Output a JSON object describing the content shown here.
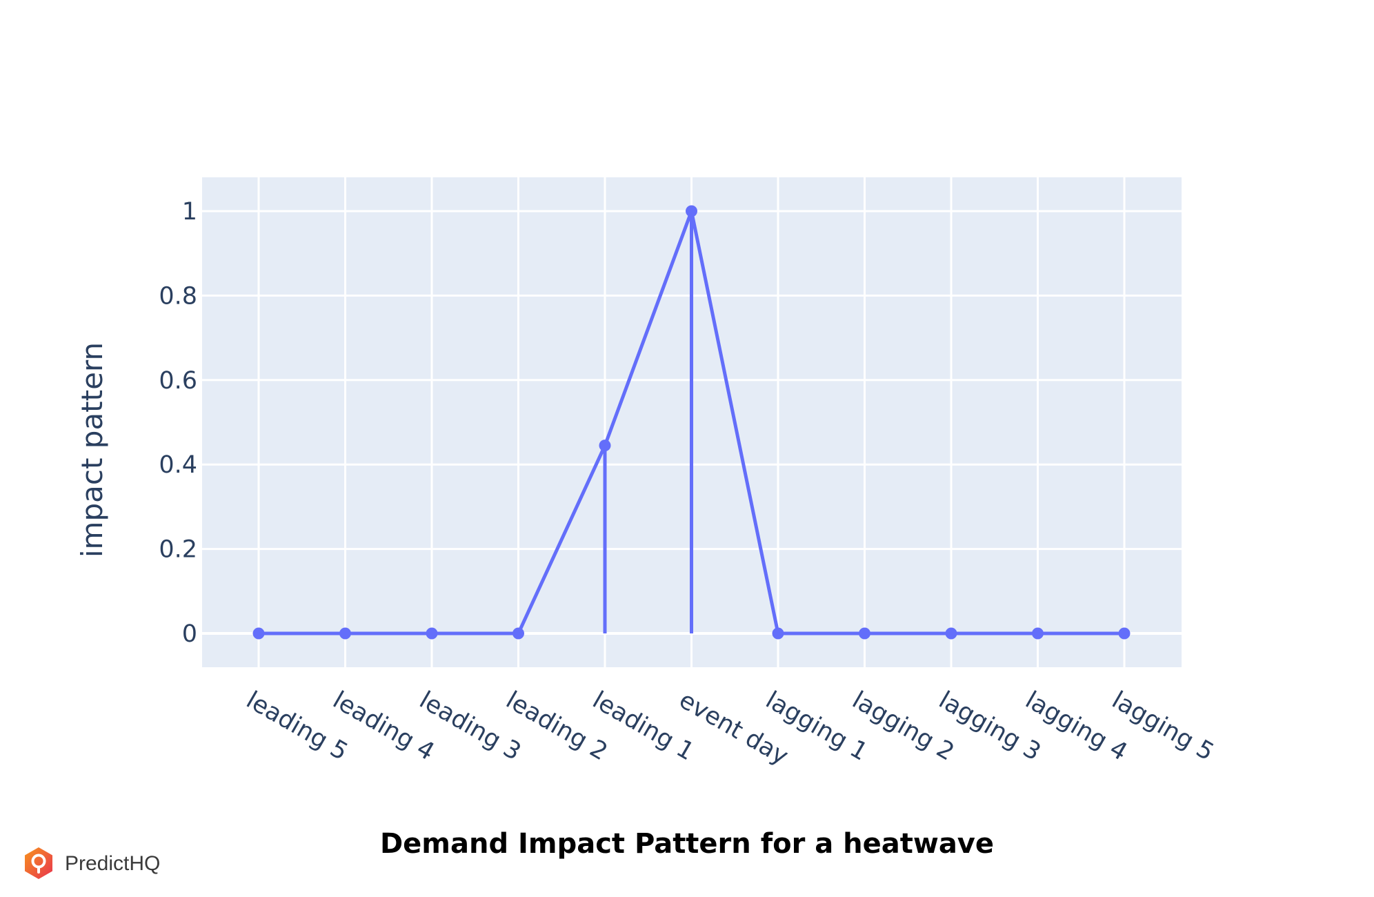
{
  "chart_data": {
    "type": "line",
    "title": "Demand Impact Pattern for a heatwave",
    "xlabel": "",
    "ylabel": "impact pattern",
    "categories": [
      "leading 5",
      "leading 4",
      "leading 3",
      "leading 2",
      "leading 1",
      "event day",
      "lagging 1",
      "lagging 2",
      "lagging 3",
      "lagging 4",
      "lagging 5"
    ],
    "values": [
      0,
      0,
      0,
      0,
      0.445,
      1,
      0,
      0,
      0,
      0,
      0
    ],
    "stems": true,
    "ylim": [
      -0.08,
      1.08
    ],
    "yticks": [
      0,
      0.2,
      0.4,
      0.6,
      0.8,
      1
    ],
    "ytick_labels": [
      "0",
      "0.2",
      "0.4",
      "0.6",
      "0.8",
      "1"
    ],
    "grid": true,
    "legend": "none",
    "colors": {
      "series": "#636efa",
      "plot_bg": "#e5ecf6",
      "grid": "#ffffff",
      "tick_text": "#2a3f5f"
    }
  },
  "brand": {
    "name": "PredictHQ",
    "logo_icon": "predicthq-logo-icon",
    "logo_colors": [
      "#f7931e",
      "#e8344e"
    ]
  }
}
